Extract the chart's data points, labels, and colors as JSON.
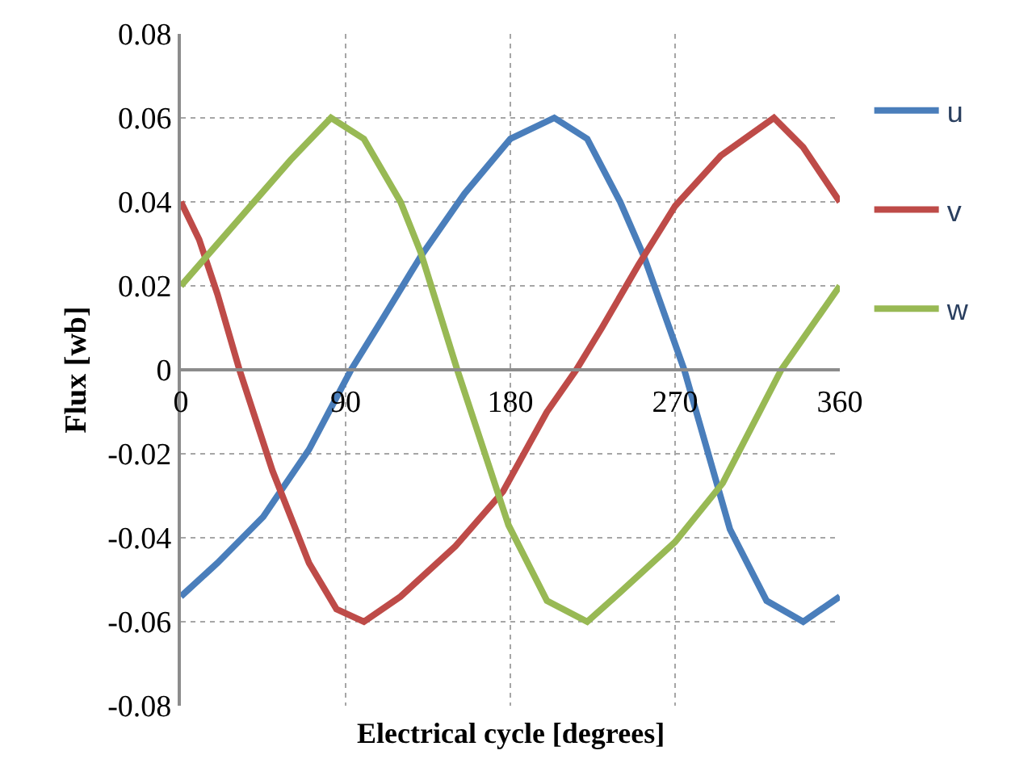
{
  "chart_data": {
    "type": "line",
    "xlabel": "Electrical cycle [degrees]",
    "ylabel": "Flux [wb]",
    "xlim": [
      0,
      360
    ],
    "xticks": [
      0,
      90,
      180,
      270,
      360
    ],
    "ylim": [
      -0.08,
      0.08
    ],
    "yticks": [
      {
        "value": -0.08,
        "label": "-0.08"
      },
      {
        "value": -0.06,
        "label": "-0.06"
      },
      {
        "value": -0.04,
        "label": "-0.04"
      },
      {
        "value": -0.02,
        "label": "-0.02"
      },
      0,
      {
        "value": 0.02,
        "label": "0.02"
      },
      {
        "value": 0.04,
        "label": "0.04"
      },
      {
        "value": 0.06,
        "label": "0.06"
      },
      {
        "value": 0.08,
        "label": "0.08"
      }
    ],
    "grid": true,
    "legend": "right",
    "marker": "none",
    "line_style": "solid",
    "series": [
      {
        "name": "u",
        "color": "#4a7ebb",
        "x": [
          0,
          20,
          45,
          70,
          93,
          110,
          131,
          155,
          180,
          204,
          222,
          240,
          253,
          275,
          300,
          320,
          340,
          360
        ],
        "values": [
          -0.054,
          -0.046,
          -0.035,
          -0.019,
          0,
          0.012,
          0.027,
          0.042,
          0.055,
          0.06,
          0.055,
          0.04,
          0.027,
          0,
          -0.038,
          -0.055,
          -0.06,
          -0.054
        ]
      },
      {
        "name": "v",
        "color": "#be4b48",
        "x": [
          0,
          10,
          20,
          32,
          50,
          70,
          85,
          100,
          120,
          150,
          176,
          200,
          216,
          230,
          250,
          270,
          295,
          324,
          340,
          360
        ],
        "values": [
          0.04,
          0.031,
          0.018,
          0,
          -0.024,
          -0.046,
          -0.057,
          -0.06,
          -0.054,
          -0.042,
          -0.029,
          -0.01,
          0,
          0.01,
          0.025,
          0.039,
          0.051,
          0.06,
          0.053,
          0.04
        ]
      },
      {
        "name": "w",
        "color": "#98b954",
        "x": [
          0,
          20,
          40,
          60,
          82,
          100,
          120,
          131,
          151,
          179,
          200,
          222,
          240,
          270,
          296,
          328,
          360
        ],
        "values": [
          0.02,
          0.03,
          0.04,
          0.05,
          0.06,
          0.055,
          0.04,
          0.028,
          0,
          -0.037,
          -0.055,
          -0.06,
          -0.053,
          -0.041,
          -0.027,
          0,
          0.02
        ]
      }
    ]
  }
}
